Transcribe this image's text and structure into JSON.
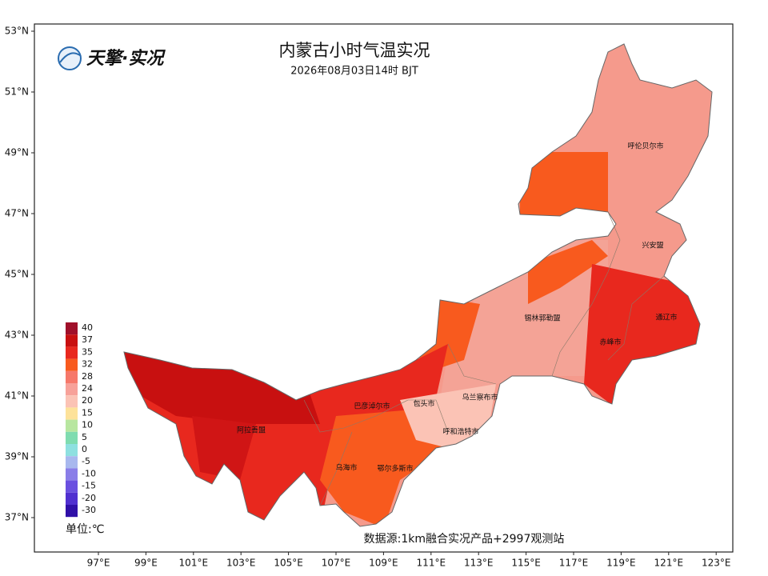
{
  "header": {
    "logo": "天擎·实况",
    "title": "内蒙古小时气温实况",
    "subtitle": "2026年08月03日14时 BJT"
  },
  "map": {
    "lon_ticks": [
      {
        "value": 97,
        "label": "97°E"
      },
      {
        "value": 99,
        "label": "99°E"
      },
      {
        "value": 101,
        "label": "101°E"
      },
      {
        "value": 103,
        "label": "103°E"
      },
      {
        "value": 105,
        "label": "105°E"
      },
      {
        "value": 107,
        "label": "107°E"
      },
      {
        "value": 109,
        "label": "109°E"
      },
      {
        "value": 111,
        "label": "111°E"
      },
      {
        "value": 113,
        "label": "113°E"
      },
      {
        "value": 115,
        "label": "115°E"
      },
      {
        "value": 117,
        "label": "117°E"
      },
      {
        "value": 119,
        "label": "119°E"
      },
      {
        "value": 121,
        "label": "121°E"
      },
      {
        "value": 123,
        "label": "123°E"
      }
    ],
    "lat_ticks": [
      {
        "value": 53,
        "label": "53°N"
      },
      {
        "value": 51,
        "label": "51°N"
      },
      {
        "value": 49,
        "label": "49°N"
      },
      {
        "value": 47,
        "label": "47°N"
      },
      {
        "value": 45,
        "label": "45°N"
      },
      {
        "value": 43,
        "label": "43°N"
      },
      {
        "value": 41,
        "label": "41°N"
      },
      {
        "value": 39,
        "label": "39°N"
      },
      {
        "value": 37,
        "label": "37°N"
      }
    ],
    "cities": [
      "呼伦贝尔市",
      "兴安盟",
      "锡林郭勒盟",
      "通辽市",
      "赤峰市",
      "乌兰察布市",
      "包头市",
      "巴彦淖尔市",
      "呼和浩特市",
      "阿拉善盟",
      "乌海市",
      "鄂尔多斯市"
    ]
  },
  "legend": {
    "items": [
      {
        "value": 40,
        "color": "#a0102a"
      },
      {
        "value": 37,
        "color": "#c81010"
      },
      {
        "value": 35,
        "color": "#e8281e"
      },
      {
        "value": 32,
        "color": "#f85a1e"
      },
      {
        "value": 28,
        "color": "#f6786a"
      },
      {
        "value": 24,
        "color": "#f7a199"
      },
      {
        "value": 20,
        "color": "#fbc3b5"
      },
      {
        "value": 15,
        "color": "#fde29a"
      },
      {
        "value": 10,
        "color": "#b8e6a0"
      },
      {
        "value": 5,
        "color": "#7fdcb0"
      },
      {
        "value": 0,
        "color": "#8ee0e0"
      },
      {
        "value": -5,
        "color": "#a8b8ee"
      },
      {
        "value": -10,
        "color": "#8a7ee8"
      },
      {
        "value": -15,
        "color": "#6a50e0"
      },
      {
        "value": -20,
        "color": "#5030d0"
      },
      {
        "value": -30,
        "color": "#3010a8"
      }
    ],
    "unit": "单位:℃"
  },
  "footer": {
    "source": "数据源:1km融合实况产品+2997观测站"
  }
}
